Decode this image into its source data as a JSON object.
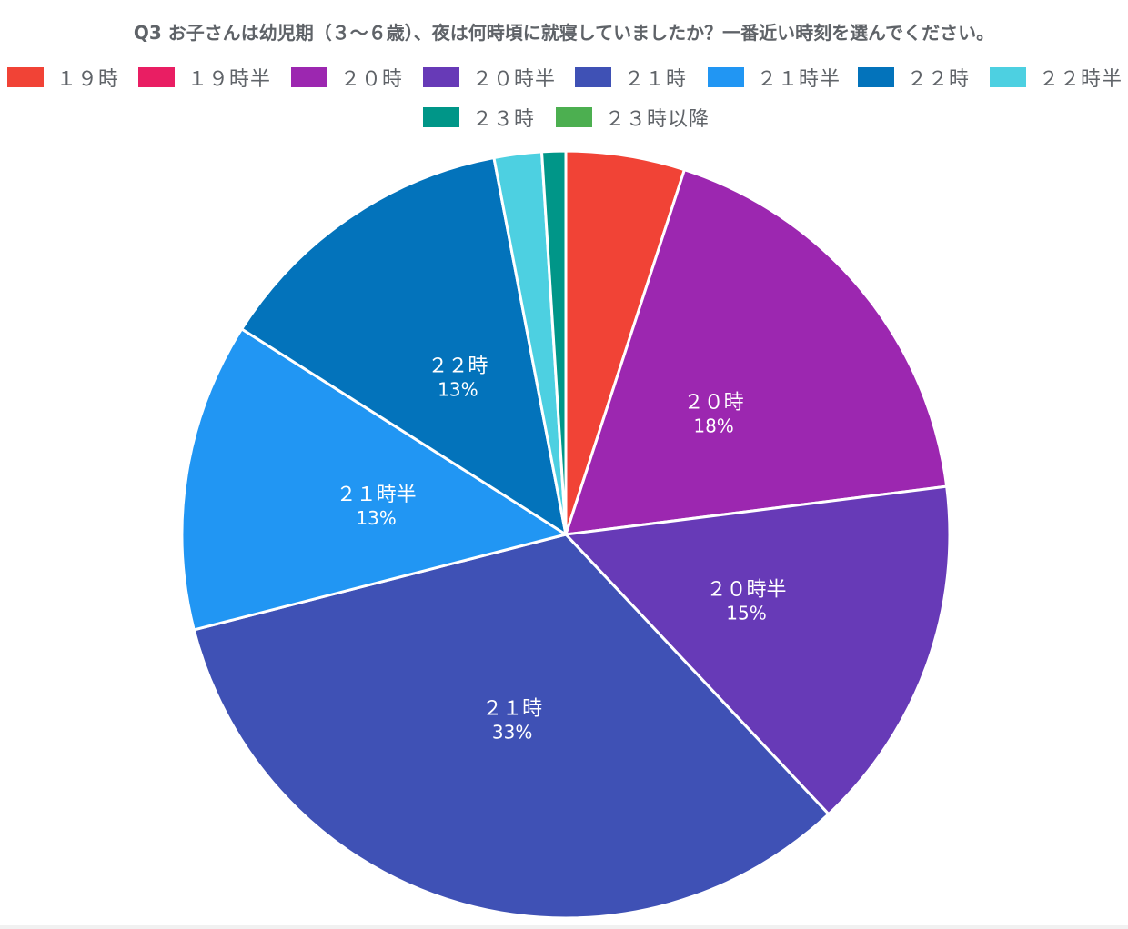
{
  "chart_data": {
    "type": "pie",
    "title": "Q3 お子さんは幼児期（３〜６歳）、夜は何時頃に就寝していましたか？一番近い時刻を選んでください。",
    "legend_position": "top",
    "slices": [
      {
        "label": "１９時",
        "value": 5,
        "color": "#f14336",
        "data_label": ""
      },
      {
        "label": "１９時半",
        "value": 0,
        "color": "#e91e63",
        "data_label": ""
      },
      {
        "label": "２０時",
        "value": 18,
        "color": "#9c27b0",
        "data_label": "18%"
      },
      {
        "label": "２０時半",
        "value": 15,
        "color": "#673ab7",
        "data_label": "15%"
      },
      {
        "label": "２１時",
        "value": 33,
        "color": "#3f51b5",
        "data_label": "33%"
      },
      {
        "label": "２１時半",
        "value": 13,
        "color": "#2196f3",
        "data_label": "13%"
      },
      {
        "label": "２２時",
        "value": 13,
        "color": "#0373bb",
        "data_label": "13%"
      },
      {
        "label": "２２時半",
        "value": 2,
        "color": "#4dd0e1",
        "data_label": ""
      },
      {
        "label": "２３時",
        "value": 1,
        "color": "#009688",
        "data_label": ""
      },
      {
        "label": "２３時以降",
        "value": 0,
        "color": "#4caf50",
        "data_label": ""
      }
    ]
  }
}
